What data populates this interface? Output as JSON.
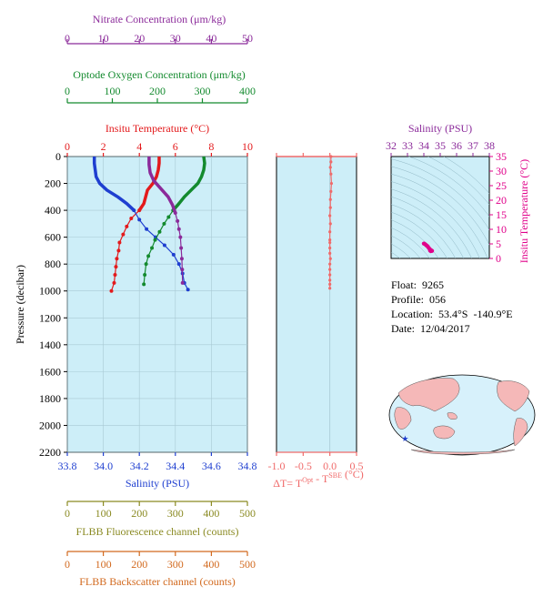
{
  "float_info": {
    "float": "Float:  9265",
    "profile": "Profile:  056",
    "location": "Location:  53.4°S  -140.9°E",
    "date": "Date:  12/04/2017"
  },
  "colors": {
    "panel_bg": "#cdeef8",
    "temperature": "#e31a1c",
    "salinity": "#1f3fd0",
    "oxygen": "#138a2e",
    "nitrate": "#8b2a9a",
    "fluorescence": "#8a8a22",
    "backscatter": "#d2691e",
    "delta_t": "#f06a6a",
    "ts_points": "#e0008a",
    "map_land": "#f5b8b8",
    "map_ocean": "#d7f1fb",
    "float_marker": "#1f3fd0"
  },
  "chart_data": [
    {
      "type": "line",
      "panel": "main_profile",
      "ylabel": "Pressure (decibar)",
      "ylim": [
        2200,
        0
      ],
      "yticks": [
        0,
        200,
        400,
        600,
        800,
        1000,
        1200,
        1400,
        1600,
        1800,
        2000,
        2200
      ],
      "grid": true,
      "axes": {
        "nitrate": {
          "label": "Nitrate Concentration (μm/kg)",
          "lim": [
            0,
            50
          ],
          "ticks": [
            0,
            10,
            20,
            30,
            40,
            50
          ]
        },
        "oxygen": {
          "label": "Optode Oxygen Concentration (μm/kg)",
          "lim": [
            0,
            400
          ],
          "ticks": [
            0,
            100,
            200,
            300,
            400
          ]
        },
        "temperature": {
          "label": "Insitu Temperature (°C)",
          "lim": [
            0,
            10
          ],
          "ticks": [
            0,
            2,
            4,
            6,
            8,
            10
          ]
        },
        "salinity": {
          "label": "Salinity (PSU)",
          "lim": [
            33.8,
            34.8
          ],
          "ticks": [
            "33.8",
            "34.0",
            "34.2",
            "34.4",
            "34.6",
            "34.8"
          ]
        },
        "fluorescence": {
          "label": "FLBB Fluorescence channel (counts)",
          "lim": [
            0,
            500
          ],
          "ticks": [
            0,
            100,
            200,
            300,
            400,
            500
          ]
        },
        "backscatter": {
          "label": "FLBB Backscatter channel (counts)",
          "lim": [
            0,
            500
          ],
          "ticks": [
            0,
            100,
            200,
            300,
            400,
            500
          ]
        }
      },
      "series": [
        {
          "name": "Insitu Temperature",
          "axis": "temperature",
          "x": [
            5.1,
            5.1,
            5.05,
            4.95,
            4.75,
            4.45,
            4.35,
            4.25,
            4.0,
            3.55,
            3.3,
            3.1,
            2.9,
            2.85,
            2.75,
            2.7,
            2.65,
            2.6,
            2.45
          ],
          "y": [
            0,
            50,
            100,
            150,
            200,
            250,
            300,
            350,
            400,
            460,
            520,
            580,
            640,
            700,
            760,
            820,
            880,
            940,
            1000
          ]
        },
        {
          "name": "Salinity",
          "axis": "salinity",
          "x": [
            33.95,
            33.95,
            33.955,
            33.96,
            33.98,
            34.02,
            34.08,
            34.13,
            34.17,
            34.2,
            34.24,
            34.29,
            34.34,
            34.39,
            34.42,
            34.44,
            34.45,
            34.47
          ],
          "y": [
            0,
            50,
            100,
            150,
            200,
            250,
            300,
            350,
            400,
            470,
            540,
            600,
            660,
            730,
            800,
            870,
            940,
            990
          ]
        },
        {
          "name": "Optode Oxygen Concentration",
          "axis": "oxygen",
          "x": [
            303,
            305,
            303,
            298,
            290,
            275,
            260,
            248,
            235,
            225,
            215,
            205,
            195,
            188,
            180,
            175,
            172,
            170
          ],
          "y": [
            0,
            50,
            100,
            150,
            200,
            250,
            300,
            350,
            400,
            450,
            500,
            560,
            620,
            680,
            740,
            800,
            880,
            950
          ]
        },
        {
          "name": "Nitrate Concentration",
          "axis": "nitrate",
          "x": [
            22.7,
            22.7,
            23.0,
            24.0,
            26.0,
            28.0,
            29.2,
            30.0,
            30.6,
            31.0,
            31.4,
            31.6,
            31.8,
            31.9,
            32.0
          ],
          "y": [
            0,
            60,
            120,
            180,
            240,
            300,
            360,
            420,
            480,
            540,
            600,
            680,
            760,
            840,
            940
          ]
        }
      ]
    },
    {
      "type": "scatter",
      "panel": "delta_t",
      "xlabel": "ΔT= T^Opt - T^SBE (°C)",
      "xlim": [
        -1.0,
        0.5
      ],
      "xticks": [
        "-1.0",
        "-0.5",
        "0.0",
        "0.5"
      ],
      "ylim": [
        2200,
        0
      ],
      "series": [
        {
          "name": "ΔT",
          "x": [
            0.02,
            0.02,
            0.01,
            0.02,
            0.03,
            0.02,
            0.01,
            0.01,
            0.0,
            0.01,
            0.0,
            0.0,
            0.0,
            0.0,
            0.0,
            0.01,
            0.0,
            0.0,
            0.0,
            0.0,
            0.0,
            0.0
          ],
          "y": [
            0,
            40,
            80,
            130,
            200,
            260,
            320,
            380,
            440,
            500,
            560,
            620,
            640,
            680,
            720,
            760,
            800,
            840,
            880,
            920,
            950,
            980
          ]
        }
      ]
    },
    {
      "type": "scatter",
      "panel": "ts_diagram",
      "title": "Salinity (PSU)",
      "ylabel": "Insitu Temperature (°C)",
      "xlim": [
        32,
        38
      ],
      "ylim": [
        0,
        35
      ],
      "xticks": [
        32,
        33,
        34,
        35,
        36,
        37,
        38
      ],
      "yticks": [
        0,
        5,
        10,
        15,
        20,
        25,
        30,
        35
      ],
      "series": [
        {
          "name": "T-S",
          "x": [
            34.0,
            34.05,
            34.1,
            34.15,
            34.2,
            34.25,
            34.3,
            34.35,
            34.4,
            34.44,
            34.47,
            34.5,
            34.42,
            34.38
          ],
          "y": [
            5.1,
            5.0,
            4.8,
            4.5,
            4.3,
            4.0,
            3.6,
            3.3,
            3.0,
            2.8,
            2.7,
            2.6,
            2.5,
            2.7
          ]
        }
      ]
    },
    {
      "type": "scatter",
      "panel": "location_map",
      "series": [
        {
          "name": "float position",
          "x": [
            -140.9
          ],
          "y": [
            -53.4
          ]
        }
      ]
    }
  ]
}
